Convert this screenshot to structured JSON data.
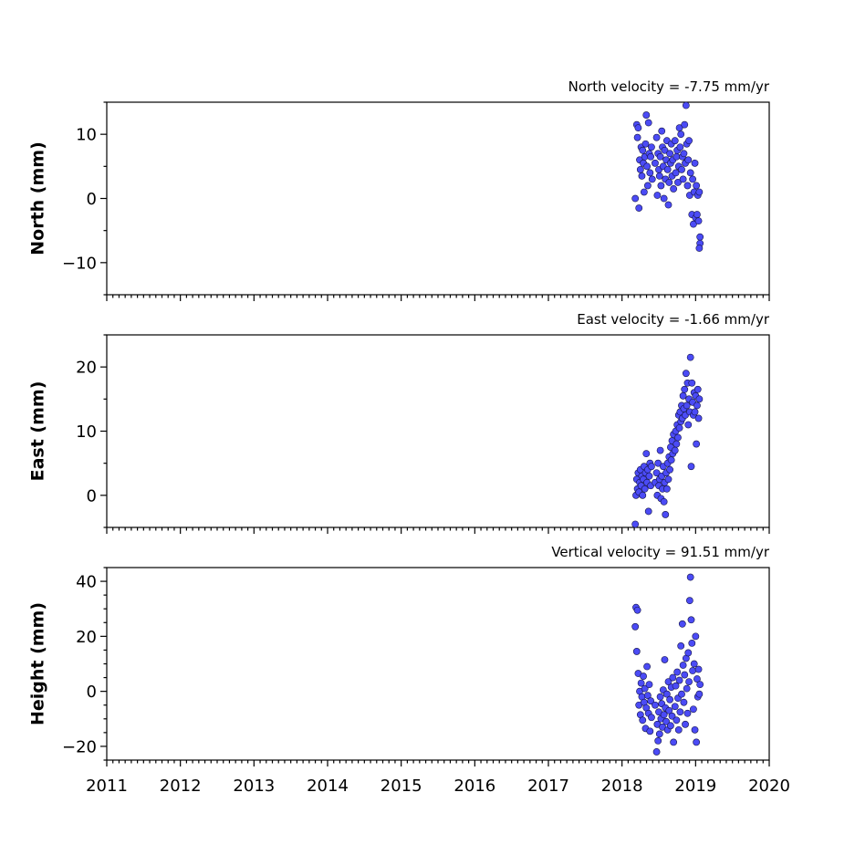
{
  "chart_data": {
    "type": "scatter",
    "xlabel": "",
    "x_range": [
      2011,
      2020
    ],
    "x_ticks": [
      2011,
      2012,
      2013,
      2014,
      2015,
      2016,
      2017,
      2018,
      2019,
      2020
    ],
    "x_tick_labels": [
      "2011",
      "2012",
      "2013",
      "2014",
      "2015",
      "2016",
      "2017",
      "2018",
      "2019",
      "2020"
    ],
    "marker_color": "#4b4bf5",
    "marker_edge_color": "#14144a",
    "panels": [
      {
        "id": "north",
        "title": "North velocity = -7.75 mm/yr",
        "ylabel": "North (mm)",
        "ylim": [
          -15,
          15
        ],
        "y_ticks": [
          -10,
          0,
          10
        ],
        "y_tick_labels": [
          "−10",
          "0",
          "10"
        ],
        "points": [
          [
            2018.18,
            0.0
          ],
          [
            2018.2,
            11.5
          ],
          [
            2018.21,
            9.5
          ],
          [
            2018.22,
            11.0
          ],
          [
            2018.23,
            -1.5
          ],
          [
            2018.24,
            6.0
          ],
          [
            2018.25,
            4.5
          ],
          [
            2018.26,
            8.0
          ],
          [
            2018.27,
            3.5
          ],
          [
            2018.28,
            7.5
          ],
          [
            2018.29,
            5.5
          ],
          [
            2018.3,
            1.0
          ],
          [
            2018.31,
            6.5
          ],
          [
            2018.32,
            8.5
          ],
          [
            2018.33,
            13.0
          ],
          [
            2018.34,
            5.0
          ],
          [
            2018.35,
            2.0
          ],
          [
            2018.36,
            11.8
          ],
          [
            2018.37,
            7.0
          ],
          [
            2018.38,
            4.0
          ],
          [
            2018.39,
            6.5
          ],
          [
            2018.4,
            8.0
          ],
          [
            2018.41,
            3.0
          ],
          [
            2018.45,
            5.5
          ],
          [
            2018.47,
            9.5
          ],
          [
            2018.48,
            0.5
          ],
          [
            2018.49,
            7.0
          ],
          [
            2018.5,
            4.5
          ],
          [
            2018.51,
            3.5
          ],
          [
            2018.52,
            6.5
          ],
          [
            2018.53,
            2.0
          ],
          [
            2018.54,
            10.5
          ],
          [
            2018.55,
            8.0
          ],
          [
            2018.56,
            5.0
          ],
          [
            2018.57,
            0.0
          ],
          [
            2018.58,
            7.5
          ],
          [
            2018.59,
            3.0
          ],
          [
            2018.6,
            6.0
          ],
          [
            2018.61,
            9.0
          ],
          [
            2018.62,
            4.5
          ],
          [
            2018.63,
            -1.0
          ],
          [
            2018.64,
            2.5
          ],
          [
            2018.65,
            7.0
          ],
          [
            2018.66,
            5.5
          ],
          [
            2018.67,
            8.5
          ],
          [
            2018.68,
            3.5
          ],
          [
            2018.69,
            6.0
          ],
          [
            2018.7,
            1.5
          ],
          [
            2018.72,
            9.0
          ],
          [
            2018.73,
            4.0
          ],
          [
            2018.74,
            6.5
          ],
          [
            2018.75,
            7.5
          ],
          [
            2018.76,
            2.5
          ],
          [
            2018.77,
            5.0
          ],
          [
            2018.78,
            11.0
          ],
          [
            2018.79,
            8.0
          ],
          [
            2018.8,
            10.0
          ],
          [
            2018.81,
            4.5
          ],
          [
            2018.82,
            6.5
          ],
          [
            2018.83,
            3.0
          ],
          [
            2018.84,
            7.0
          ],
          [
            2018.85,
            11.5
          ],
          [
            2018.86,
            5.5
          ],
          [
            2018.87,
            14.5
          ],
          [
            2018.88,
            8.5
          ],
          [
            2018.89,
            2.0
          ],
          [
            2018.9,
            6.0
          ],
          [
            2018.91,
            9.0
          ],
          [
            2018.92,
            0.5
          ],
          [
            2018.93,
            4.0
          ],
          [
            2018.95,
            -2.5
          ],
          [
            2018.96,
            3.0
          ],
          [
            2018.97,
            -4.0
          ],
          [
            2018.98,
            1.0
          ],
          [
            2018.99,
            5.5
          ],
          [
            2019.0,
            -3.0
          ],
          [
            2019.01,
            2.0
          ],
          [
            2019.02,
            -2.5
          ],
          [
            2019.03,
            0.5
          ],
          [
            2019.04,
            -3.5
          ],
          [
            2019.05,
            1.0
          ],
          [
            2019.06,
            -6.0
          ],
          [
            2019.06,
            -7.0
          ],
          [
            2019.05,
            -7.75
          ]
        ]
      },
      {
        "id": "east",
        "title": "East velocity = -1.66 mm/yr",
        "ylabel": "East (mm)",
        "ylim": [
          -5,
          25
        ],
        "y_ticks": [
          0,
          10,
          20
        ],
        "y_tick_labels": [
          "0",
          "10",
          "20"
        ],
        "points": [
          [
            2018.18,
            -4.5
          ],
          [
            2018.19,
            0.0
          ],
          [
            2018.2,
            2.5
          ],
          [
            2018.21,
            1.0
          ],
          [
            2018.22,
            3.5
          ],
          [
            2018.23,
            0.5
          ],
          [
            2018.24,
            2.0
          ],
          [
            2018.25,
            4.0
          ],
          [
            2018.26,
            1.5
          ],
          [
            2018.27,
            3.0
          ],
          [
            2018.28,
            0.0
          ],
          [
            2018.29,
            2.5
          ],
          [
            2018.3,
            4.5
          ],
          [
            2018.31,
            1.0
          ],
          [
            2018.32,
            3.5
          ],
          [
            2018.33,
            6.5
          ],
          [
            2018.34,
            2.0
          ],
          [
            2018.35,
            4.0
          ],
          [
            2018.36,
            -2.5
          ],
          [
            2018.37,
            3.0
          ],
          [
            2018.38,
            5.0
          ],
          [
            2018.39,
            1.5
          ],
          [
            2018.4,
            4.5
          ],
          [
            2018.45,
            2.0
          ],
          [
            2018.47,
            3.5
          ],
          [
            2018.48,
            0.0
          ],
          [
            2018.49,
            5.0
          ],
          [
            2018.5,
            1.5
          ],
          [
            2018.51,
            2.5
          ],
          [
            2018.52,
            7.0
          ],
          [
            2018.53,
            -0.5
          ],
          [
            2018.54,
            3.0
          ],
          [
            2018.55,
            1.0
          ],
          [
            2018.56,
            4.5
          ],
          [
            2018.57,
            -1.0
          ],
          [
            2018.58,
            2.0
          ],
          [
            2018.59,
            -3.0
          ],
          [
            2018.6,
            3.5
          ],
          [
            2018.61,
            1.0
          ],
          [
            2018.62,
            5.0
          ],
          [
            2018.63,
            2.5
          ],
          [
            2018.64,
            6.0
          ],
          [
            2018.65,
            4.0
          ],
          [
            2018.66,
            7.5
          ],
          [
            2018.67,
            5.5
          ],
          [
            2018.68,
            8.5
          ],
          [
            2018.69,
            6.5
          ],
          [
            2018.7,
            9.5
          ],
          [
            2018.72,
            7.0
          ],
          [
            2018.73,
            10.0
          ],
          [
            2018.74,
            8.0
          ],
          [
            2018.75,
            11.0
          ],
          [
            2018.76,
            9.0
          ],
          [
            2018.77,
            12.5
          ],
          [
            2018.78,
            10.5
          ],
          [
            2018.79,
            13.0
          ],
          [
            2018.8,
            11.5
          ],
          [
            2018.81,
            14.0
          ],
          [
            2018.82,
            12.0
          ],
          [
            2018.83,
            15.5
          ],
          [
            2018.84,
            13.5
          ],
          [
            2018.85,
            16.5
          ],
          [
            2018.86,
            12.5
          ],
          [
            2018.87,
            19.0
          ],
          [
            2018.88,
            14.0
          ],
          [
            2018.89,
            17.5
          ],
          [
            2018.9,
            11.0
          ],
          [
            2018.91,
            15.0
          ],
          [
            2018.92,
            13.0
          ],
          [
            2018.93,
            21.5
          ],
          [
            2018.94,
            4.5
          ],
          [
            2018.95,
            17.5
          ],
          [
            2018.96,
            14.5
          ],
          [
            2018.97,
            12.5
          ],
          [
            2018.98,
            16.0
          ],
          [
            2018.99,
            13.0
          ],
          [
            2019.0,
            15.5
          ],
          [
            2019.01,
            8.0
          ],
          [
            2019.02,
            14.0
          ],
          [
            2019.03,
            16.5
          ],
          [
            2019.04,
            12.0
          ],
          [
            2019.05,
            15.0
          ]
        ]
      },
      {
        "id": "vertical",
        "title": "Vertical velocity = 91.51 mm/yr",
        "ylabel": "Height (mm)",
        "ylim": [
          -25,
          45
        ],
        "y_ticks": [
          -20,
          0,
          20,
          40
        ],
        "y_tick_labels": [
          "−20",
          "0",
          "20",
          "40"
        ],
        "points": [
          [
            2018.18,
            23.5
          ],
          [
            2018.19,
            30.5
          ],
          [
            2018.2,
            14.5
          ],
          [
            2018.21,
            29.5
          ],
          [
            2018.22,
            6.5
          ],
          [
            2018.23,
            -5.0
          ],
          [
            2018.24,
            0.0
          ],
          [
            2018.25,
            -8.5
          ],
          [
            2018.26,
            3.0
          ],
          [
            2018.27,
            -2.0
          ],
          [
            2018.28,
            -10.5
          ],
          [
            2018.29,
            5.5
          ],
          [
            2018.3,
            -4.0
          ],
          [
            2018.31,
            1.0
          ],
          [
            2018.32,
            -13.5
          ],
          [
            2018.33,
            -6.0
          ],
          [
            2018.34,
            9.0
          ],
          [
            2018.35,
            -1.5
          ],
          [
            2018.36,
            -8.0
          ],
          [
            2018.37,
            2.5
          ],
          [
            2018.38,
            -14.5
          ],
          [
            2018.39,
            -3.5
          ],
          [
            2018.4,
            -9.5
          ],
          [
            2018.45,
            -5.0
          ],
          [
            2018.47,
            -22.0
          ],
          [
            2018.48,
            -12.0
          ],
          [
            2018.49,
            -18.0
          ],
          [
            2018.5,
            -7.5
          ],
          [
            2018.51,
            -15.5
          ],
          [
            2018.52,
            -2.0
          ],
          [
            2018.53,
            -10.0
          ],
          [
            2018.54,
            -4.5
          ],
          [
            2018.55,
            -13.0
          ],
          [
            2018.56,
            0.5
          ],
          [
            2018.57,
            -8.5
          ],
          [
            2018.58,
            11.5
          ],
          [
            2018.59,
            -6.0
          ],
          [
            2018.6,
            -11.0
          ],
          [
            2018.61,
            -1.0
          ],
          [
            2018.62,
            -14.0
          ],
          [
            2018.63,
            3.5
          ],
          [
            2018.64,
            -7.0
          ],
          [
            2018.65,
            -3.0
          ],
          [
            2018.66,
            -12.5
          ],
          [
            2018.67,
            1.5
          ],
          [
            2018.68,
            -9.0
          ],
          [
            2018.69,
            5.0
          ],
          [
            2018.7,
            -18.5
          ],
          [
            2018.72,
            -5.5
          ],
          [
            2018.73,
            2.0
          ],
          [
            2018.74,
            -10.5
          ],
          [
            2018.75,
            7.0
          ],
          [
            2018.76,
            -2.5
          ],
          [
            2018.77,
            -14.0
          ],
          [
            2018.78,
            4.0
          ],
          [
            2018.79,
            -7.5
          ],
          [
            2018.8,
            16.5
          ],
          [
            2018.81,
            -1.0
          ],
          [
            2018.82,
            24.5
          ],
          [
            2018.83,
            9.5
          ],
          [
            2018.84,
            -4.0
          ],
          [
            2018.85,
            6.0
          ],
          [
            2018.86,
            -12.0
          ],
          [
            2018.87,
            12.0
          ],
          [
            2018.88,
            1.0
          ],
          [
            2018.89,
            -8.0
          ],
          [
            2018.9,
            14.0
          ],
          [
            2018.91,
            3.5
          ],
          [
            2018.92,
            33.0
          ],
          [
            2018.93,
            41.5
          ],
          [
            2018.94,
            26.0
          ],
          [
            2018.95,
            17.5
          ],
          [
            2018.96,
            7.5
          ],
          [
            2018.97,
            -6.5
          ],
          [
            2018.98,
            10.0
          ],
          [
            2018.99,
            -14.0
          ],
          [
            2019.0,
            20.0
          ],
          [
            2019.01,
            -18.5
          ],
          [
            2019.02,
            4.5
          ],
          [
            2019.03,
            -2.0
          ],
          [
            2019.04,
            8.0
          ],
          [
            2019.05,
            -1.0
          ],
          [
            2019.06,
            2.5
          ]
        ]
      }
    ]
  }
}
